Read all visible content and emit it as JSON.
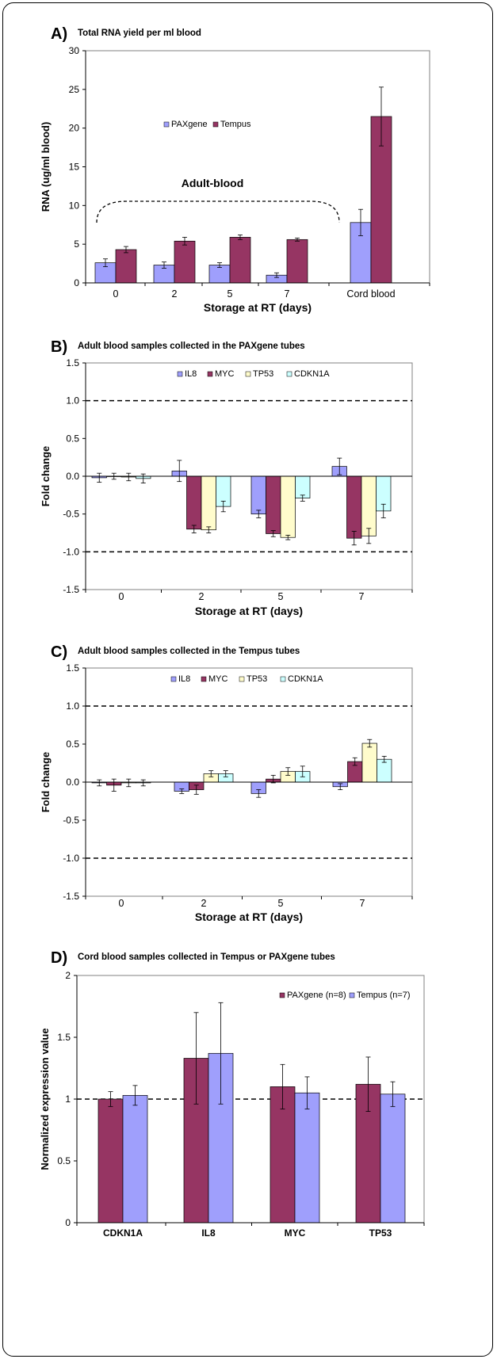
{
  "panels": [
    {
      "letter": "A)",
      "title": "Total RNA yield per ml blood"
    },
    {
      "letter": "B)",
      "title": "Adult blood samples collected in the PAXgene tubes"
    },
    {
      "letter": "C)",
      "title": "Adult blood samples collected in the Tempus tubes"
    },
    {
      "letter": "D)",
      "title": "Cord blood samples collected in Tempus or PAXgene  tubes"
    }
  ],
  "annotations": {
    "adult_blood": "Adult-blood"
  },
  "colors": {
    "paxgene": "#9f9ffc",
    "tempus": "#963563",
    "il8": "#9f9ffc",
    "myc": "#963563",
    "tp53": "#fffccc",
    "cdkn1a": "#ccffff"
  },
  "chart_data": [
    {
      "type": "bar",
      "title": "Total RNA yield per ml blood",
      "xlabel": "Storage at RT (days)",
      "ylabel": "RNA (ug/ml blood)",
      "ylim": [
        0,
        30
      ],
      "yticks": [
        "0",
        "5",
        "10",
        "15",
        "20",
        "25",
        "30"
      ],
      "categories": [
        "0",
        "2",
        "5",
        "7",
        "Cord blood"
      ],
      "legend_position": "top-center",
      "grid": false,
      "series": [
        {
          "name": "PAXgene",
          "values": [
            2.6,
            2.3,
            2.3,
            1.0,
            7.8
          ],
          "errors": [
            0.5,
            0.4,
            0.3,
            0.3,
            1.7
          ]
        },
        {
          "name": "Tempus",
          "values": [
            4.3,
            5.4,
            5.9,
            5.6,
            21.5
          ],
          "errors": [
            0.4,
            0.5,
            0.3,
            0.2,
            3.8
          ]
        }
      ]
    },
    {
      "type": "bar",
      "title": "Adult blood samples collected in the PAXgene tubes",
      "xlabel": "Storage at RT (days)",
      "ylabel": "Fold change",
      "ylim": [
        -1.5,
        1.5
      ],
      "yticks": [
        "-1.5",
        "-1.0",
        "-0.5",
        "0.0",
        "0.5",
        "1.0",
        "1.5"
      ],
      "categories": [
        "0",
        "2",
        "5",
        "7"
      ],
      "reference_lines": [
        1.0,
        -1.0
      ],
      "legend_position": "top-center",
      "grid": false,
      "series": [
        {
          "name": "IL8",
          "values": [
            -0.02,
            0.07,
            -0.5,
            0.13
          ],
          "errors": [
            0.06,
            0.14,
            0.05,
            0.11
          ]
        },
        {
          "name": "MYC",
          "values": [
            0.0,
            -0.7,
            -0.76,
            -0.82
          ],
          "errors": [
            0.04,
            0.05,
            0.04,
            0.09
          ]
        },
        {
          "name": "TP53",
          "values": [
            -0.01,
            -0.71,
            -0.81,
            -0.79
          ],
          "errors": [
            0.05,
            0.04,
            0.03,
            0.1
          ]
        },
        {
          "name": "CDKN1A",
          "values": [
            -0.03,
            -0.4,
            -0.29,
            -0.46
          ],
          "errors": [
            0.06,
            0.07,
            0.04,
            0.09
          ]
        }
      ]
    },
    {
      "type": "bar",
      "title": "Adult blood samples collected in the Tempus tubes",
      "xlabel": "Storage at RT (days)",
      "ylabel": "Fold change",
      "ylim": [
        -1.5,
        1.5
      ],
      "yticks": [
        "-1.5",
        "-1.0",
        "-0.5",
        "0.0",
        "0.5",
        "1.0",
        "1.5"
      ],
      "categories": [
        "0",
        "2",
        "5",
        "7"
      ],
      "reference_lines": [
        1.0,
        -1.0
      ],
      "legend_position": "top-center",
      "grid": false,
      "series": [
        {
          "name": "IL8",
          "values": [
            -0.01,
            -0.12,
            -0.15,
            -0.06
          ],
          "errors": [
            0.04,
            0.03,
            0.05,
            0.04
          ]
        },
        {
          "name": "MYC",
          "values": [
            -0.04,
            -0.1,
            0.04,
            0.27
          ],
          "errors": [
            0.08,
            0.06,
            0.05,
            0.05
          ]
        },
        {
          "name": "TP53",
          "values": [
            -0.01,
            0.11,
            0.14,
            0.51
          ],
          "errors": [
            0.05,
            0.04,
            0.05,
            0.05
          ]
        },
        {
          "name": "CDKN1A",
          "values": [
            -0.01,
            0.11,
            0.14,
            0.3
          ],
          "errors": [
            0.04,
            0.04,
            0.07,
            0.04
          ]
        }
      ]
    },
    {
      "type": "bar",
      "title": "Cord blood samples collected in Tempus or PAXgene  tubes",
      "xlabel": "",
      "ylabel": "Normalized expression value",
      "ylim": [
        0,
        2
      ],
      "yticks": [
        "0",
        "0.5",
        "1",
        "1.5",
        "2"
      ],
      "categories": [
        "CDKN1A",
        "IL8",
        "MYC",
        "TP53"
      ],
      "reference_lines": [
        1.0
      ],
      "legend_position": "top-right",
      "grid": false,
      "series": [
        {
          "name": "PAXgene (n=8)",
          "values": [
            1.0,
            1.33,
            1.1,
            1.12
          ],
          "errors": [
            0.06,
            0.37,
            0.18,
            0.22
          ]
        },
        {
          "name": "Tempus (n=7)",
          "values": [
            1.03,
            1.37,
            1.05,
            1.04
          ],
          "errors": [
            0.08,
            0.41,
            0.13,
            0.1
          ]
        }
      ]
    }
  ]
}
